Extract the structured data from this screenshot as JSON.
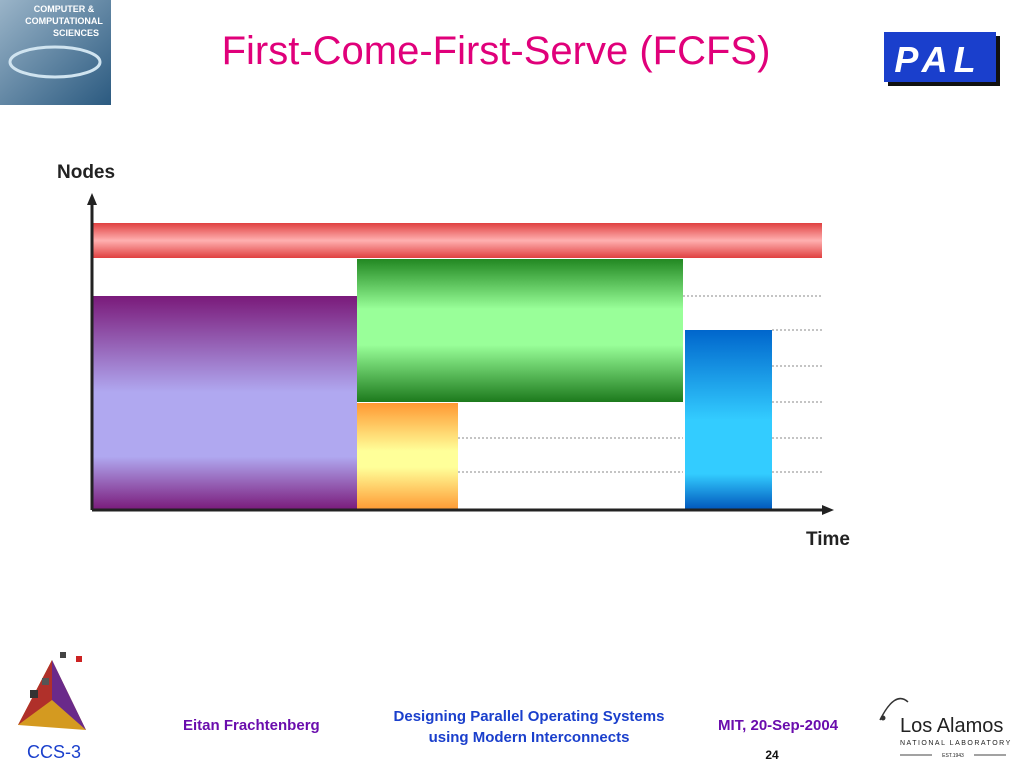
{
  "header": {
    "title": "First-Come-First-Serve (FCFS)",
    "left_logo": [
      "COMPUTER &",
      "COMPUTATIONAL",
      "SCIENCES"
    ],
    "right_logo": "PAL"
  },
  "diagram": {
    "y_axis_label": "Nodes",
    "x_axis_label": "Time"
  },
  "footer": {
    "author": "Eitan Frachtenberg",
    "talk": [
      "Designing Parallel Operating Systems",
      "using Modern Interconnects"
    ],
    "venue": "MIT, 20-Sep-2004",
    "page": "24",
    "group": "CCS-3",
    "lab": "Los Alamos",
    "lab_sub": "NATIONAL LABORATORY",
    "lab_est": "EST.1943"
  }
}
